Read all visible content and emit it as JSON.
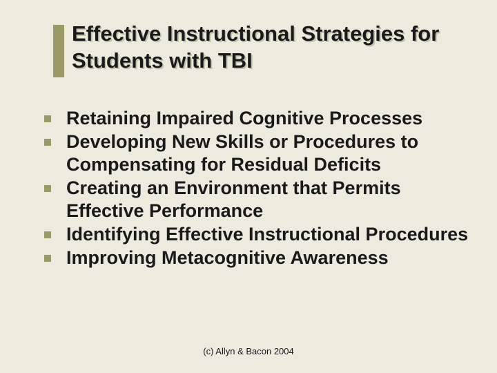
{
  "background_color": "#eeeade",
  "accent_color": "#9a9a66",
  "text_color": "#1a1a1a",
  "title": "Effective Instructional Strategies for Students with TBI",
  "title_fontsize": 31,
  "title_fontweight": "bold",
  "bullet_fontsize": 27,
  "bullet_fontweight": "bold",
  "bullet_marker": {
    "shape": "square",
    "size": 10,
    "color": "#9a9a66"
  },
  "bullets": [
    "Retaining Impaired Cognitive Processes",
    "Developing New Skills or Procedures to Compensating for Residual Deficits",
    "Creating an Environment that Permits Effective Performance",
    "Identifying Effective Instructional Procedures",
    "Improving Metacognitive Awareness"
  ],
  "footer": "(c) Allyn & Bacon 2004",
  "footer_fontsize": 13
}
